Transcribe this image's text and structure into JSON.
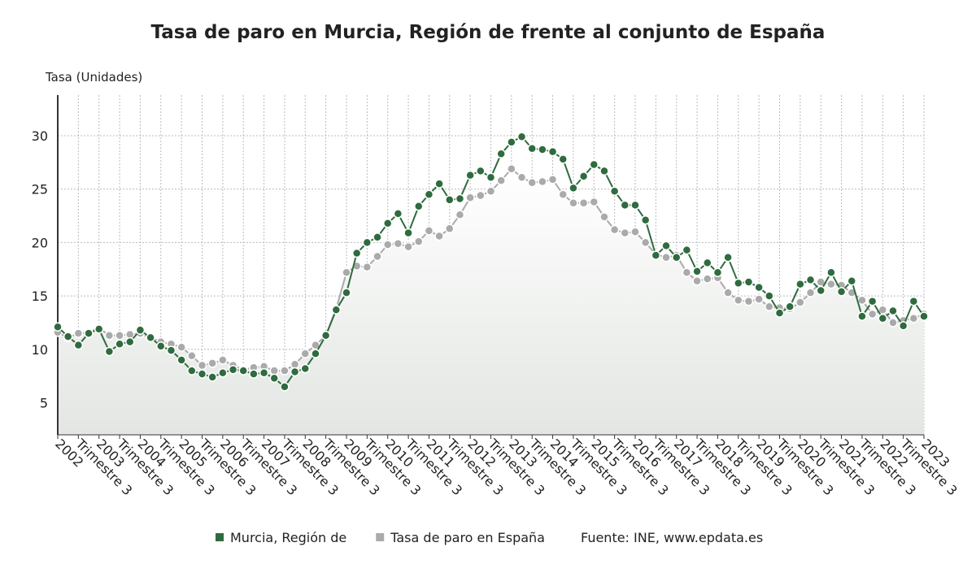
{
  "chart_data": {
    "type": "line",
    "title": "Tasa de paro en Murcia, Región de frente al conjunto de España",
    "y_label": "Tasa (Unidades)",
    "source": "Fuente: INE, www.epdata.es",
    "categories": [
      "2002",
      null,
      "Trimestre 3",
      null,
      "2003",
      null,
      "Trimestre 3",
      null,
      "2004",
      null,
      "Trimestre 3",
      null,
      "2005",
      null,
      "Trimestre 3",
      null,
      "2006",
      null,
      "Trimestre 3",
      null,
      "2007",
      null,
      "Trimestre 3",
      null,
      "2008",
      null,
      "Trimestre 3",
      null,
      "2009",
      null,
      "Trimestre 3",
      null,
      "2010",
      null,
      "Trimestre 3",
      null,
      "2011",
      null,
      "Trimestre 3",
      null,
      "2012",
      null,
      "Trimestre 3",
      null,
      "2013",
      null,
      "Trimestre 3",
      null,
      "2014",
      null,
      "Trimestre 3",
      null,
      "2015",
      null,
      "Trimestre 3",
      null,
      "2016",
      null,
      "Trimestre 3",
      null,
      "2017",
      null,
      "Trimestre 3",
      null,
      "2018",
      null,
      "Trimestre 3",
      null,
      "2019",
      null,
      "Trimestre 3",
      null,
      "2020",
      null,
      "Trimestre 3",
      null,
      "2021",
      null,
      "Trimestre 3",
      null,
      "2022",
      null,
      "Trimestre 3",
      null,
      "2023"
    ],
    "series": [
      {
        "name": "Murcia, Región de",
        "color": "#2f6b3f",
        "values": [
          12.1,
          11.2,
          10.4,
          11.5,
          11.9,
          9.8,
          10.5,
          10.7,
          11.8,
          11.1,
          10.3,
          9.9,
          9.0,
          8.0,
          7.7,
          7.4,
          7.8,
          8.1,
          8.0,
          7.7,
          7.8,
          7.3,
          6.5,
          7.9,
          8.2,
          9.6,
          11.3,
          13.7,
          15.3,
          19.0,
          20.0,
          20.5,
          21.8,
          22.7,
          20.9,
          23.4,
          24.5,
          25.5,
          24.0,
          24.1,
          26.3,
          26.7,
          26.1,
          28.3,
          29.4,
          29.9,
          28.8,
          28.7,
          28.5,
          27.8,
          25.1,
          26.2,
          27.3,
          26.7,
          24.8,
          23.5,
          23.5,
          22.1,
          18.8,
          19.7,
          18.6,
          19.3,
          17.3,
          18.1,
          17.2,
          18.6,
          16.2,
          16.3,
          15.8,
          15.0,
          13.4,
          14.0,
          16.1,
          16.5,
          15.5,
          17.2,
          15.4,
          16.4,
          13.1,
          14.5,
          12.9,
          13.6,
          12.2,
          14.5,
          13.1
        ]
      },
      {
        "name": "Tasa de paro en España",
        "color": "#aaaaaa",
        "values": [
          11.6,
          11.1,
          11.5,
          11.6,
          12.0,
          11.3,
          11.3,
          11.4,
          11.5,
          11.1,
          10.7,
          10.5,
          10.2,
          9.4,
          8.5,
          8.7,
          9.0,
          8.5,
          8.1,
          8.3,
          8.4,
          8.0,
          8.0,
          8.6,
          9.6,
          10.4,
          11.3,
          13.8,
          17.2,
          17.8,
          17.7,
          18.7,
          19.8,
          19.9,
          19.6,
          20.1,
          21.1,
          20.6,
          21.3,
          22.6,
          24.2,
          24.4,
          24.8,
          25.8,
          26.9,
          26.1,
          25.6,
          25.7,
          25.9,
          24.5,
          23.7,
          23.7,
          23.8,
          22.4,
          21.2,
          20.9,
          21.0,
          20.0,
          18.9,
          18.6,
          18.8,
          17.2,
          16.4,
          16.6,
          16.7,
          15.3,
          14.6,
          14.5,
          14.7,
          14.0,
          13.9,
          13.8,
          14.4,
          15.3,
          16.3,
          16.1,
          16.0,
          15.3,
          14.6,
          13.3,
          13.7,
          12.5,
          12.7,
          12.9,
          13.3
        ]
      }
    ],
    "ylim": [
      2,
      33.8
    ],
    "yticks": [
      5,
      10,
      15,
      20,
      25,
      30
    ],
    "grid": true
  }
}
